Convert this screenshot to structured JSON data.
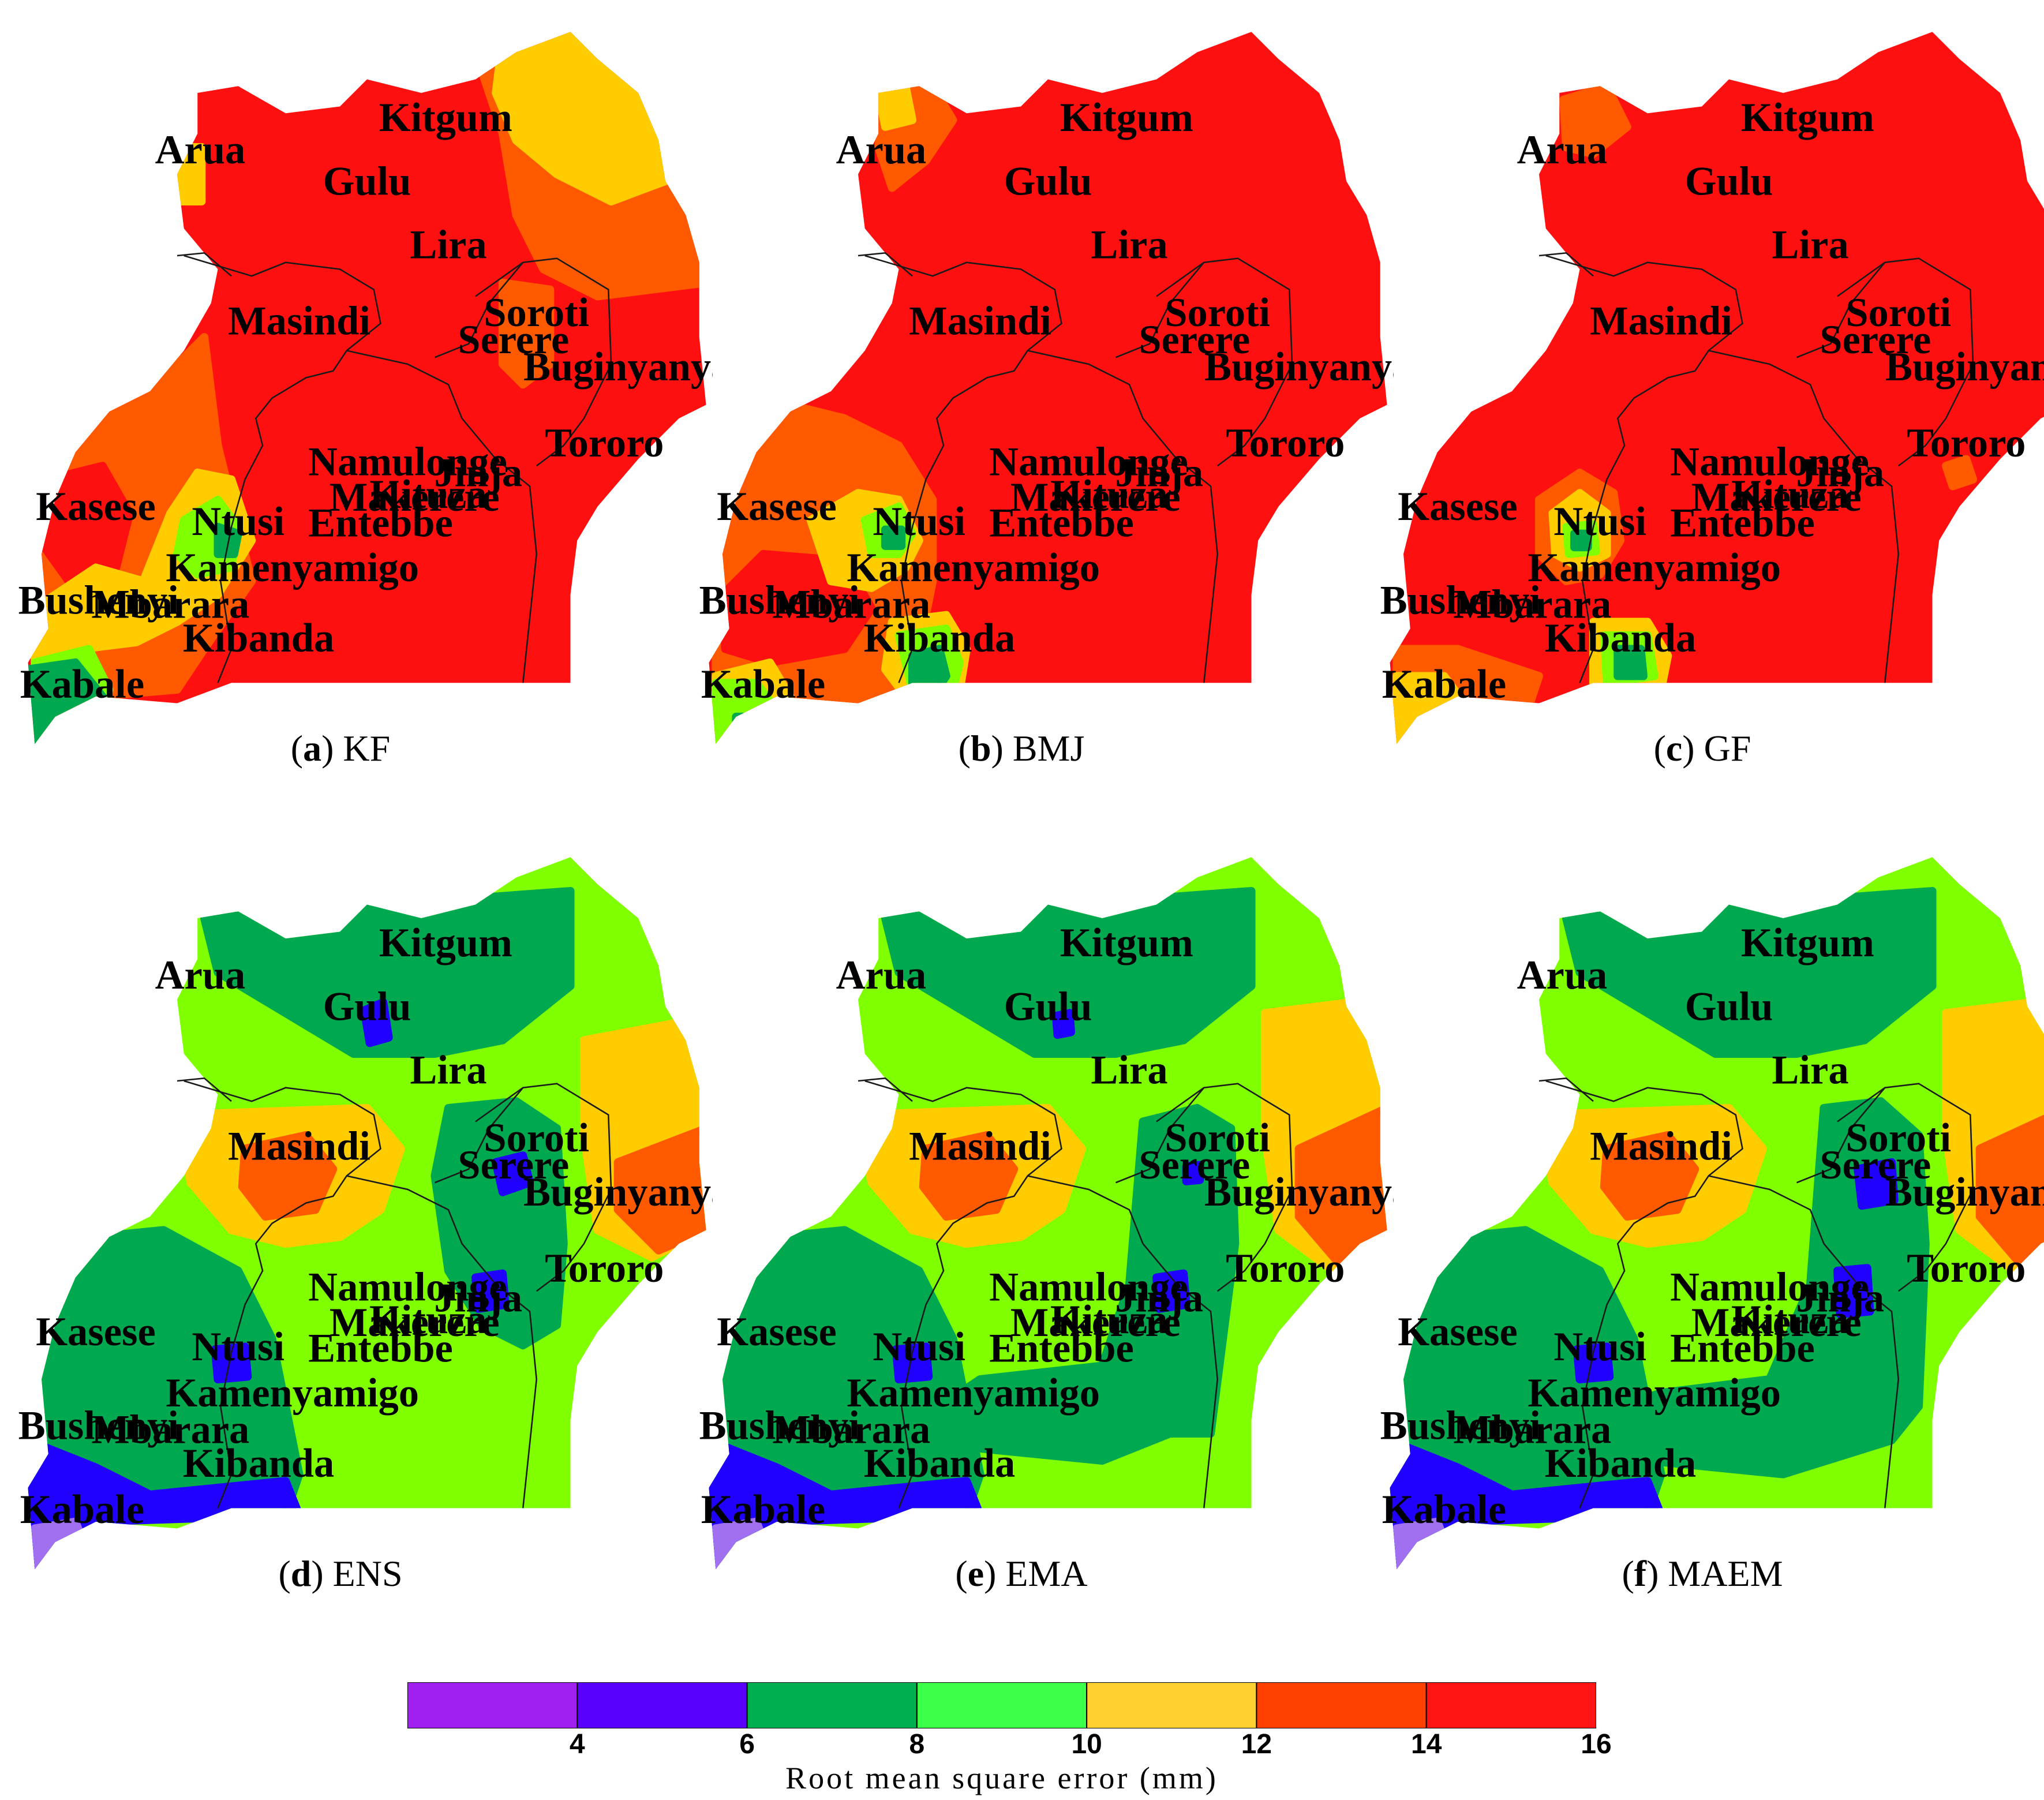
{
  "panels": [
    {
      "letter": "a",
      "name": "KF",
      "scheme": "hot_a"
    },
    {
      "letter": "b",
      "name": "BMJ",
      "scheme": "hot_b"
    },
    {
      "letter": "c",
      "name": "GF",
      "scheme": "hot_c"
    },
    {
      "letter": "d",
      "name": "ENS",
      "scheme": "cool_d"
    },
    {
      "letter": "e",
      "name": "EMA",
      "scheme": "cool_e"
    },
    {
      "letter": "f",
      "name": "MAEM",
      "scheme": "cool_f"
    }
  ],
  "cities": [
    "Kitgum",
    "Arua",
    "Gulu",
    "Lira",
    "Masindi",
    "Soroti",
    "Serere",
    "Buginyanya",
    "Tororo",
    "Namulonge",
    "Jinja",
    "Makerere",
    "Kituza",
    "Entebbe",
    "Kasese",
    "Ntusi",
    "Kamenyamigo",
    "Bushenyi",
    "Mbarara",
    "Kibanda",
    "Kabale"
  ],
  "colorbar": {
    "label": "Root mean square error (mm)",
    "bins": [
      {
        "from": 2,
        "to": 4,
        "color": "#a020f0"
      },
      {
        "from": 4,
        "to": 6,
        "color": "#5a00ff"
      },
      {
        "from": 6,
        "to": 8,
        "color": "#00b050"
      },
      {
        "from": 8,
        "to": 10,
        "color": "#3cff4a"
      },
      {
        "from": 10,
        "to": 12,
        "color": "#ffd030"
      },
      {
        "from": 12,
        "to": 14,
        "color": "#ff4000"
      },
      {
        "from": 14,
        "to": 16,
        "color": "#ff1414"
      }
    ],
    "ticks": [
      "4",
      "6",
      "8",
      "10",
      "12",
      "14",
      "16"
    ]
  },
  "colors": {
    "red": "#ff1010",
    "orange_red": "#ff5a00",
    "yellow": "#ffcc00",
    "light_green": "#80ff00",
    "green": "#00a850",
    "blue": "#2000ff",
    "purple": "#a070f0",
    "border": "#1a1a1a"
  }
}
